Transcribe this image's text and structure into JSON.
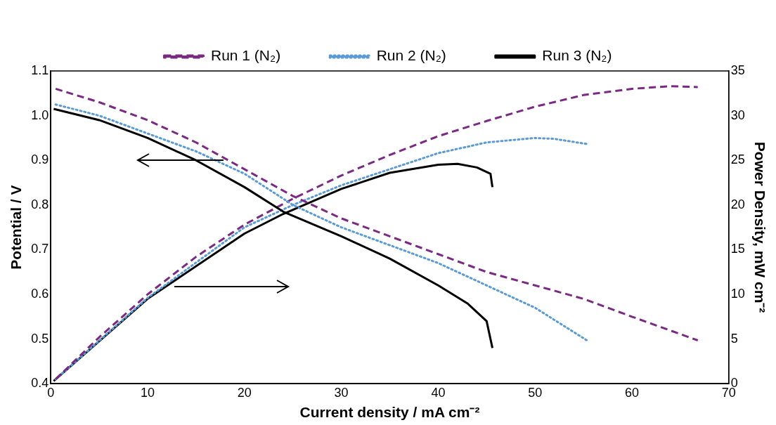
{
  "chart_data": {
    "type": "line",
    "xlabel": "Current density / mA cm⁻²",
    "ylabel": "Potential / V",
    "y2label": "Power Density, mW cm⁻²",
    "xlim": [
      0,
      70
    ],
    "xticks": [
      0,
      10,
      20,
      30,
      40,
      50,
      60,
      70
    ],
    "ylim": [
      0.4,
      1.1
    ],
    "yticks": [
      0.4,
      0.5,
      0.6,
      0.7,
      0.8,
      0.9,
      {
        "value": 1,
        "label": "1.0"
      },
      1.1
    ],
    "y2lim": [
      0,
      35
    ],
    "y2ticks": [
      0,
      5,
      10,
      15,
      20,
      25,
      30,
      35
    ],
    "grid": false,
    "legend": "top",
    "marker": "none",
    "series": [
      {
        "name": "Run 1 (N₂)",
        "color": "#7b2a83",
        "line_style": "dashed",
        "x": [
          0.5,
          5,
          10,
          15,
          20,
          25,
          30,
          35,
          40,
          45,
          50,
          55,
          60,
          66.8
        ],
        "values": [
          1.06,
          1.03,
          0.99,
          0.94,
          0.88,
          0.82,
          0.77,
          0.73,
          0.69,
          0.65,
          0.62,
          0.59,
          0.55,
          0.497
        ]
      },
      {
        "name": "Run 2 (N₂)",
        "color": "#5b9bd5",
        "line_style": "dotted",
        "x": [
          0.5,
          5,
          10,
          15,
          20,
          25,
          30,
          35,
          40,
          45,
          50,
          55.5
        ],
        "values": [
          1.025,
          1.0,
          0.96,
          0.92,
          0.87,
          0.8,
          0.75,
          0.71,
          0.67,
          0.62,
          0.57,
          0.495
        ]
      },
      {
        "name": "Run 3 (N₂)",
        "color": "#000000",
        "line_style": "solid",
        "x": [
          0.3,
          5,
          10,
          15,
          20,
          24,
          30,
          35,
          40,
          43,
          45,
          45.6
        ],
        "values": [
          1.015,
          0.99,
          0.95,
          0.9,
          0.84,
          0.785,
          0.73,
          0.68,
          0.62,
          0.58,
          0.54,
          0.48
        ]
      },
      {
        "color": "#7b2a83",
        "line_style": "dashed",
        "axis": "y2",
        "x": [
          0.5,
          5,
          10,
          15,
          20,
          25,
          30,
          35,
          40,
          45,
          50,
          55,
          60,
          64,
          66.8
        ],
        "values": [
          0.5,
          5.2,
          10,
          14.2,
          17.8,
          20.7,
          23.3,
          25.6,
          27.7,
          29.4,
          31,
          32.3,
          33,
          33.3,
          33.2
        ]
      },
      {
        "color": "#5b9bd5",
        "line_style": "dotted",
        "axis": "y2",
        "x": [
          0.5,
          10,
          20,
          25,
          30,
          40,
          45,
          50,
          52,
          55.5
        ],
        "values": [
          0.5,
          9.6,
          17.5,
          20,
          22.2,
          25.8,
          27,
          27.5,
          27.4,
          26.8
        ]
      },
      {
        "color": "#000000",
        "line_style": "solid",
        "axis": "y2",
        "x": [
          0.3,
          10,
          20,
          24,
          30,
          35,
          40,
          42,
          44,
          45.4,
          45.6
        ],
        "values": [
          0.3,
          9.5,
          16.8,
          19,
          21.8,
          23.6,
          24.5,
          24.6,
          24.2,
          23.5,
          22
        ]
      }
    ]
  }
}
